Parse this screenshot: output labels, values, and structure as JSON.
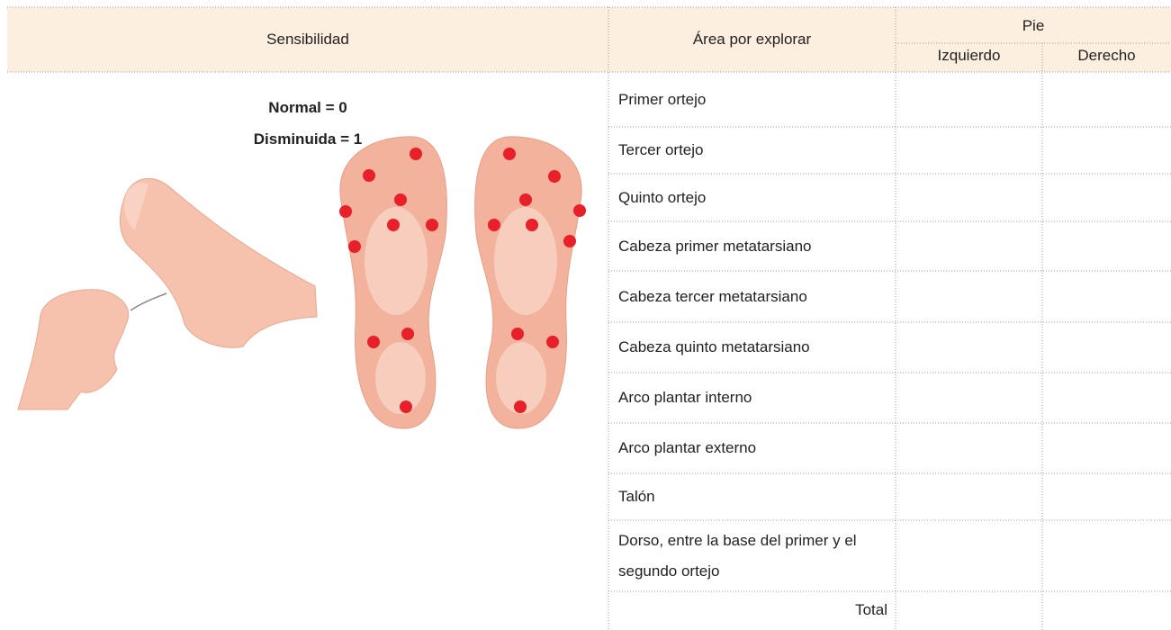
{
  "header": {
    "sensibilidad": "Sensibilidad",
    "area": "Área por explorar",
    "pie": "Pie",
    "izquierdo": "Izquierdo",
    "derecho": "Derecho"
  },
  "legend": [
    "Normal = 0",
    "Disminuida = 1"
  ],
  "rows": [
    "Primer ortejo",
    "Tercer ortejo",
    "Quinto ortejo",
    "Cabeza primer metatarsiano",
    "Cabeza tercer metatarsiano",
    "Cabeza quinto metatarsiano",
    "Arco plantar interno",
    "Arco plantar externo",
    "Talón",
    "Dorso, entre la base del primer y el segundo ortejo"
  ],
  "total": "Total"
}
